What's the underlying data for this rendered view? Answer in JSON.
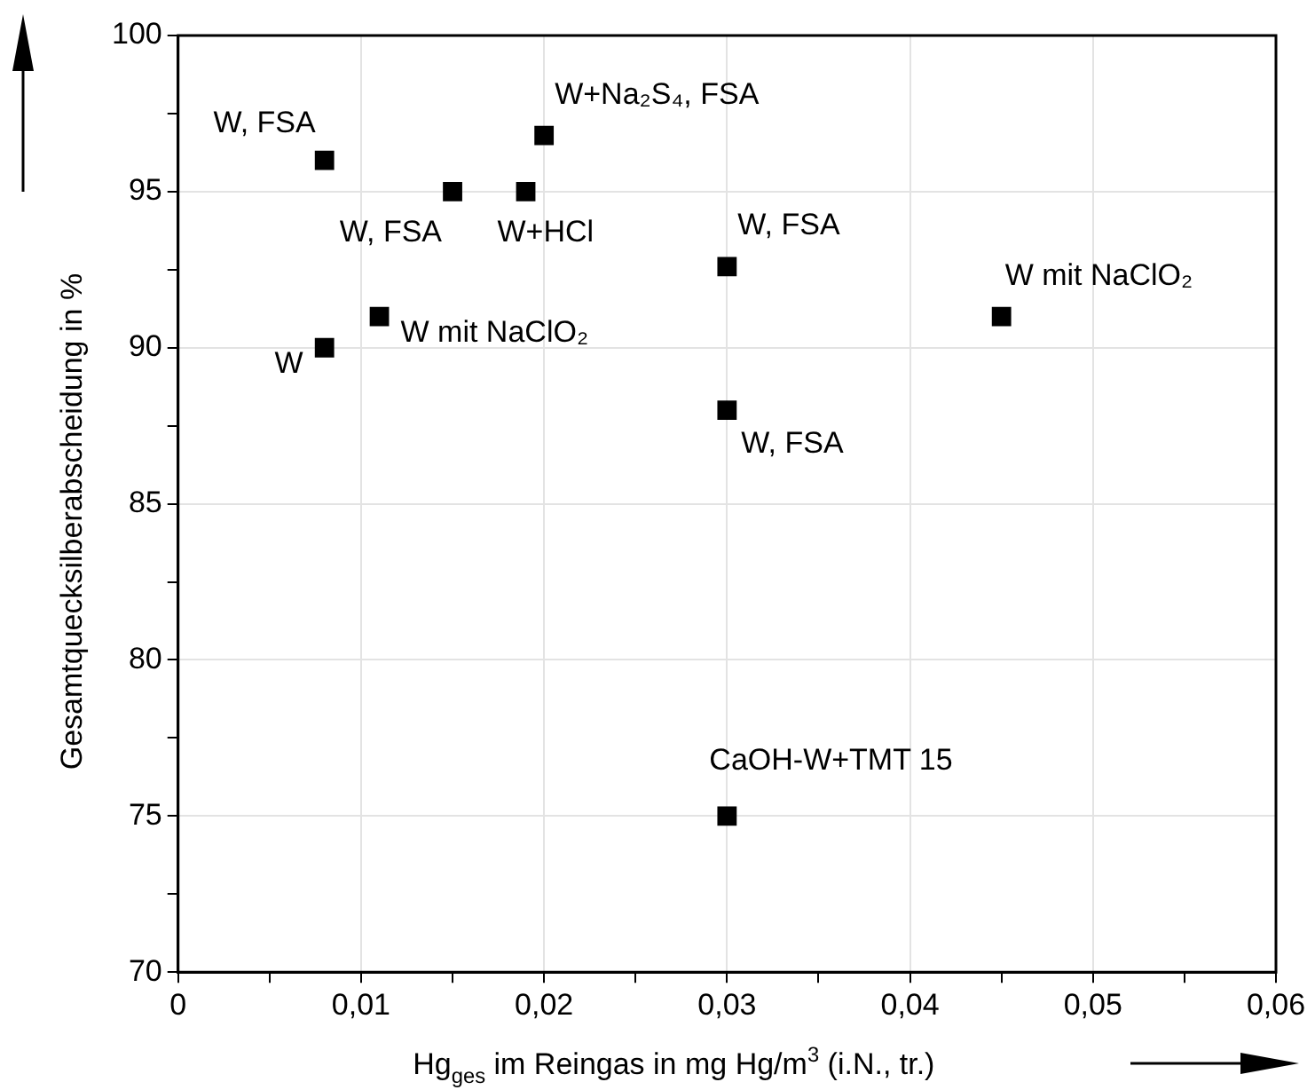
{
  "chart_data": {
    "type": "scatter",
    "xlabel": "Hg$_{ges}$ im Reingas in mg Hg/m$^{3}$ (i.N., tr.)",
    "ylabel": "Gesamtquecksilberabscheidung in %",
    "x": [
      0.008,
      0.008,
      0.011,
      0.015,
      0.019,
      0.02,
      0.03,
      0.03,
      0.03,
      0.045
    ],
    "series": [
      {
        "color": "#000000",
        "values": [
          96.0,
          90.0,
          91.0,
          95.0,
          95.0,
          96.8,
          92.6,
          88.0,
          75.0,
          91.0
        ]
      }
    ],
    "xlim": [
      0,
      0.06
    ],
    "xticks": [
      0,
      {
        "value": 0.005,
        "label": null
      },
      {
        "value": 0.01,
        "label": "0,01"
      },
      {
        "value": 0.015,
        "label": null
      },
      {
        "value": 0.02,
        "label": "0,02"
      },
      {
        "value": 0.025,
        "label": null
      },
      {
        "value": 0.03,
        "label": "0,03"
      },
      {
        "value": 0.035,
        "label": null
      },
      {
        "value": 0.04,
        "label": "0,04"
      },
      {
        "value": 0.045,
        "label": null
      },
      {
        "value": 0.05,
        "label": "0,05"
      },
      {
        "value": 0.055,
        "label": null
      },
      {
        "value": 0.06,
        "label": "0,06"
      }
    ],
    "ylim": [
      70,
      100
    ],
    "yticks": [
      70,
      {
        "value": 72.5,
        "label": null
      },
      75,
      {
        "value": 77.5,
        "label": null
      },
      80,
      {
        "value": 82.5,
        "label": null
      },
      85,
      {
        "value": 87.5,
        "label": null
      },
      90,
      {
        "value": 92.5,
        "label": null
      },
      95,
      {
        "value": 97.5,
        "label": null
      },
      100
    ],
    "annotations": [
      {
        "text": "W, FSA",
        "x": 0.008,
        "y": 96.0
      },
      {
        "text": "W",
        "x": 0.008,
        "y": 90.0
      },
      {
        "text": "W mit NaClO₂",
        "x": 0.011,
        "y": 91.0
      },
      {
        "text": "W, FSA",
        "x": 0.015,
        "y": 95.0
      },
      {
        "text": "W+HCl",
        "x": 0.019,
        "y": 95.0
      },
      {
        "text": "W+Na₂S₄, FSA",
        "x": 0.02,
        "y": 96.8
      },
      {
        "text": "W, FSA",
        "x": 0.03,
        "y": 92.6
      },
      {
        "text": "W, FSA",
        "x": 0.03,
        "y": 88.0
      },
      {
        "text": "CaOH-W+TMT 15",
        "x": 0.03,
        "y": 75.0
      },
      {
        "text": "W mit NaClO₂",
        "x": 0.045,
        "y": 91.0
      }
    ],
    "grid": true,
    "legend": false,
    "marker": "square"
  }
}
